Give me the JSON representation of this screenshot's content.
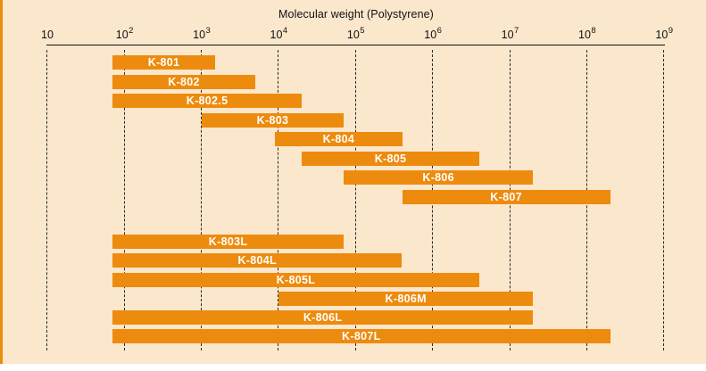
{
  "title": "Molecular weight (Polystyrene)",
  "colors": {
    "bar_orange": "#ED8B0E",
    "background_peach": "#FBE7CC",
    "accent_stripe": "#ED8B0E",
    "axis_black": "#111111",
    "bar_label_white": "#FFFFFF"
  },
  "axis": {
    "scale": "log10",
    "tick_exponents": [
      1,
      2,
      3,
      4,
      5,
      6,
      7,
      8,
      9
    ],
    "tick_labels": [
      "10",
      "10^2",
      "10^3",
      "10^4",
      "10^5",
      "10^6",
      "10^7",
      "10^8",
      "10^9"
    ],
    "gridlines": "dashed vertical at each decade"
  },
  "chart_data": {
    "type": "bar",
    "subtype": "horizontal-range-bars",
    "title": "Molecular weight (Polystyrene)",
    "x_scale": "log10",
    "xlim": [
      10,
      1000000000
    ],
    "grid": "dashed-vertical-per-decade",
    "legend": "none",
    "series": [
      {
        "name": "K-801",
        "mw_low": 70,
        "mw_high": 1500,
        "group": 1
      },
      {
        "name": "K-802",
        "mw_low": 70,
        "mw_high": 5000,
        "group": 1
      },
      {
        "name": "K-802.5",
        "mw_low": 70,
        "mw_high": 20000,
        "group": 1
      },
      {
        "name": "K-803",
        "mw_low": 1000,
        "mw_high": 70000,
        "group": 1
      },
      {
        "name": "K-804",
        "mw_low": 9000,
        "mw_high": 400000,
        "group": 1
      },
      {
        "name": "K-805",
        "mw_low": 20000,
        "mw_high": 4000000,
        "group": 1
      },
      {
        "name": "K-806",
        "mw_low": 70000,
        "mw_high": 20000000,
        "group": 1
      },
      {
        "name": "K-807",
        "mw_low": 400000,
        "mw_high": 200000000,
        "group": 1
      },
      {
        "name": "K-803L",
        "mw_low": 70,
        "mw_high": 70000,
        "group": 2
      },
      {
        "name": "K-804L",
        "mw_low": 70,
        "mw_high": 400000,
        "group": 2
      },
      {
        "name": "K-805L",
        "mw_low": 70,
        "mw_high": 4000000,
        "group": 2
      },
      {
        "name": "K-806M",
        "mw_low": 10000,
        "mw_high": 20000000,
        "group": 2
      },
      {
        "name": "K-806L",
        "mw_low": 70,
        "mw_high": 20000000,
        "group": 2
      },
      {
        "name": "K-807L",
        "mw_low": 70,
        "mw_high": 200000000,
        "group": 2
      }
    ]
  }
}
